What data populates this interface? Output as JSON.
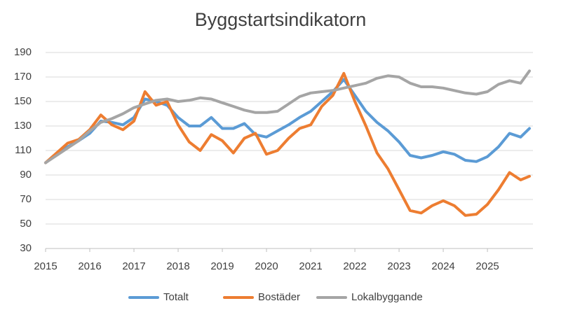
{
  "chart_data": {
    "type": "line",
    "title": "Byggstartsindikatorn",
    "x": [
      2015,
      2015.25,
      2015.5,
      2015.75,
      2016,
      2016.25,
      2016.5,
      2016.75,
      2017,
      2017.25,
      2017.5,
      2017.75,
      2018,
      2018.25,
      2018.5,
      2018.75,
      2019,
      2019.25,
      2019.5,
      2019.75,
      2020,
      2020.25,
      2020.5,
      2020.75,
      2021,
      2021.25,
      2021.5,
      2021.75,
      2022,
      2022.25,
      2022.5,
      2022.75,
      2023,
      2023.25,
      2023.5,
      2023.75,
      2024,
      2024.25,
      2024.5,
      2024.75,
      2025,
      2025.25,
      2025.5,
      2025.75,
      2025.95
    ],
    "series": [
      {
        "name": "Totalt",
        "color": "#5b9bd5",
        "values": [
          100,
          107,
          113,
          118,
          124,
          134,
          133,
          131,
          137,
          152,
          150,
          147,
          137,
          130,
          130,
          137,
          128,
          128,
          132,
          123,
          121,
          126,
          131,
          137,
          142,
          150,
          158,
          168,
          155,
          142,
          133,
          126,
          117,
          106,
          104,
          106,
          109,
          107,
          102,
          101,
          105,
          113,
          124,
          121,
          128
        ]
      },
      {
        "name": "Bostäder",
        "color": "#ed7d31",
        "values": [
          100,
          108,
          116,
          119,
          127,
          139,
          131,
          127,
          134,
          158,
          147,
          150,
          131,
          117,
          110,
          123,
          118,
          108,
          120,
          124,
          107,
          110,
          120,
          128,
          131,
          146,
          155,
          173,
          150,
          130,
          108,
          95,
          78,
          61,
          59,
          65,
          69,
          65,
          57,
          58,
          66,
          78,
          92,
          86,
          89
        ]
      },
      {
        "name": "Lokalbyggande",
        "color": "#a5a5a5",
        "values": [
          100,
          106,
          112,
          118,
          126,
          133,
          136,
          140,
          145,
          148,
          151,
          152,
          150,
          151,
          153,
          152,
          149,
          146,
          143,
          141,
          141,
          142,
          148,
          154,
          157,
          158,
          159,
          161,
          163,
          165,
          169,
          171,
          170,
          165,
          162,
          162,
          161,
          159,
          157,
          156,
          158,
          164,
          167,
          165,
          175
        ]
      }
    ],
    "xlim": [
      2015,
      2026.03
    ],
    "xticks": [
      2015,
      2016,
      2017,
      2018,
      2019,
      2020,
      2021,
      2022,
      2023,
      2024,
      2025
    ],
    "ylim": [
      30,
      190
    ],
    "yticks": [
      30,
      50,
      70,
      90,
      110,
      130,
      150,
      170,
      190
    ],
    "grid": true,
    "legend": "bottom"
  }
}
